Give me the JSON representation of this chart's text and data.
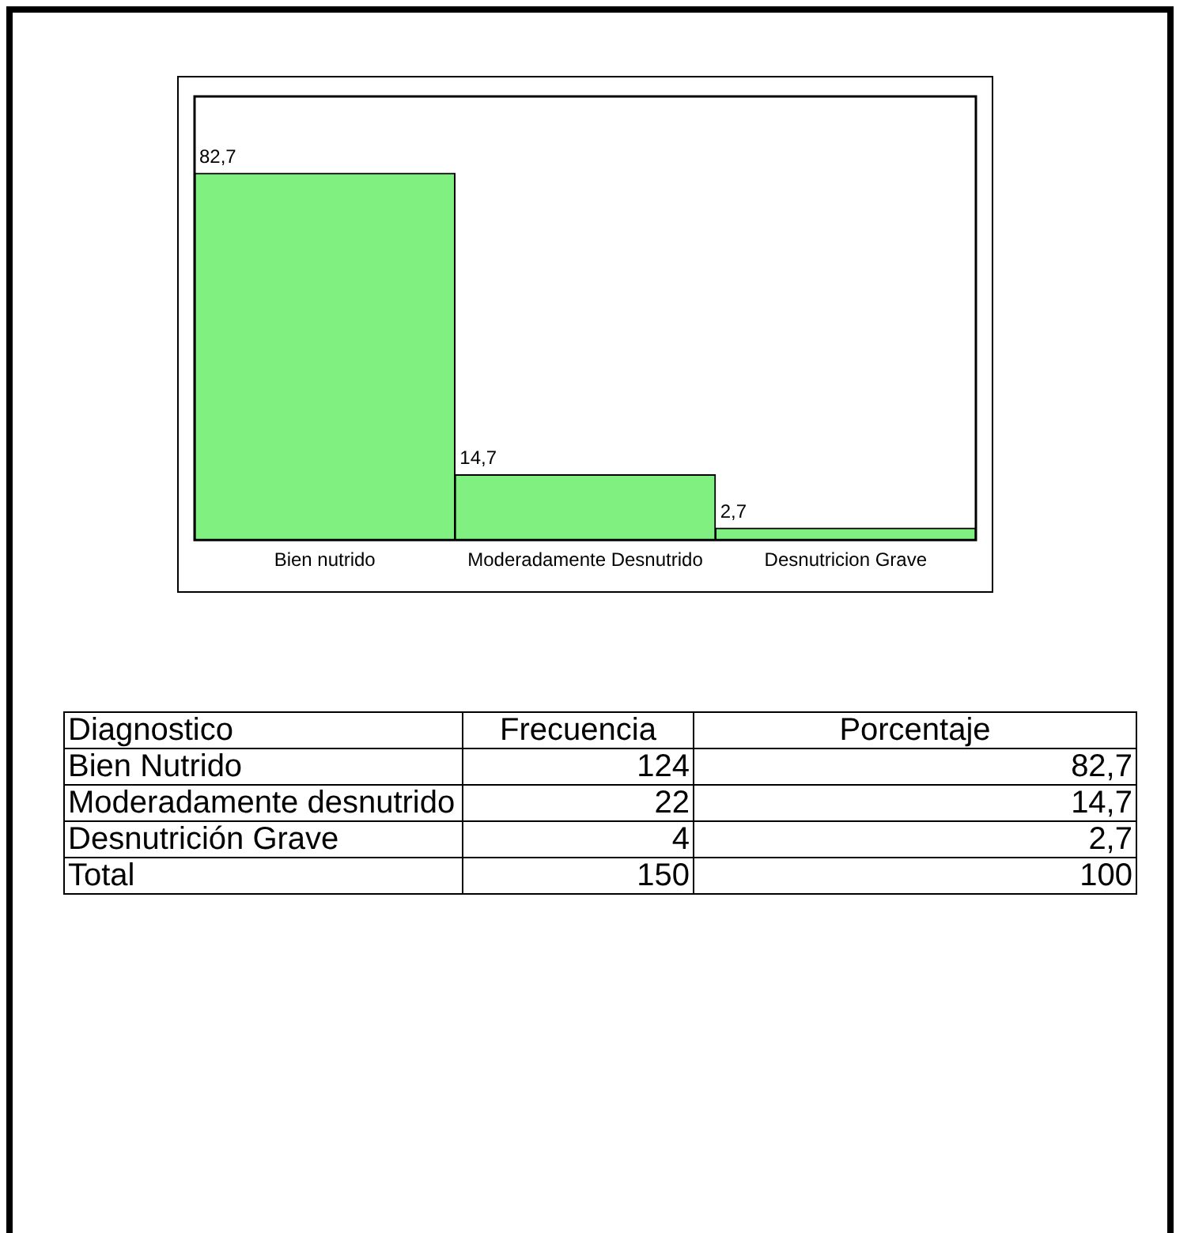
{
  "chart_data": [
    {
      "type": "bar",
      "categories": [
        "Bien nutrido",
        "Moderadamente Desnutrido",
        "Desnutricion Grave"
      ],
      "values": [
        82.7,
        14.7,
        2.7
      ],
      "color": "#80f080",
      "value_labels": [
        "82,7",
        "14,7",
        "2,7"
      ],
      "grid": false,
      "legend": false
    },
    {
      "type": "other",
      "annotations": [
        "Diagnostico",
        "Frecuencia",
        "Porcentaje",
        "Bien Nutrido",
        "124",
        "82,7",
        "Moderadamente desnutrido",
        "22",
        "14,7",
        "Desnutrición Grave",
        "4",
        "2,7",
        "Total",
        "150",
        "100"
      ]
    }
  ]
}
